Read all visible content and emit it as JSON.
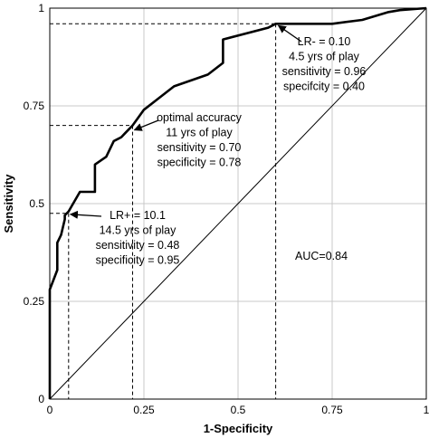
{
  "chart_data": {
    "type": "line",
    "xlabel": "1-Specificity",
    "ylabel": "Sensitivity",
    "xlim": [
      0,
      1
    ],
    "ylim": [
      0,
      1
    ],
    "x_ticks": [
      0,
      0.25,
      0.5,
      0.75,
      1
    ],
    "y_ticks": [
      0,
      0.25,
      0.5,
      0.75,
      1
    ],
    "x_tick_labels": [
      "0",
      "0.25",
      "0.5",
      "0.75",
      "1"
    ],
    "y_tick_labels": [
      "0",
      "0.25",
      "0.5",
      "0.75",
      "1"
    ],
    "grid": true,
    "series": [
      {
        "values_x": [
          0,
          0,
          0.02,
          0.02,
          0.03,
          0.04,
          0.04,
          0.05,
          0.08,
          0.12,
          0.12,
          0.15,
          0.17,
          0.19,
          0.2,
          0.22,
          0.25,
          0.29,
          0.33,
          0.42,
          0.46,
          0.46,
          0.58,
          0.6,
          0.75,
          0.83,
          0.9,
          0.93,
          1.0
        ],
        "values_y": [
          0,
          0.28,
          0.33,
          0.4,
          0.42,
          0.46,
          0.47,
          0.48,
          0.53,
          0.53,
          0.6,
          0.62,
          0.66,
          0.67,
          0.68,
          0.7,
          0.74,
          0.77,
          0.8,
          0.83,
          0.86,
          0.92,
          0.95,
          0.96,
          0.96,
          0.97,
          0.99,
          0.995,
          1.0
        ]
      }
    ],
    "reference_line": {
      "x": [
        0,
        1
      ],
      "y": [
        0,
        1
      ]
    },
    "cutoff_points": [
      {
        "x": 0.05,
        "y": 0.475
      },
      {
        "x": 0.22,
        "y": 0.7
      },
      {
        "x": 0.6,
        "y": 0.96
      }
    ],
    "annotations": [
      {
        "lines": [
          "LR+ = 10.1",
          "14.5 yrs of play",
          "sensitivity = 0.48",
          "specificity = 0.95"
        ]
      },
      {
        "lines": [
          "optimal accuracy",
          "11 yrs of play",
          "sensitivity = 0.70",
          "specificity = 0.78"
        ]
      },
      {
        "lines": [
          "LR- = 0.10",
          "4.5 yrs of play",
          "sensitivity = 0.96",
          "specifcity = 0.40"
        ]
      },
      {
        "lines": [
          "AUC=0.84"
        ]
      }
    ]
  }
}
